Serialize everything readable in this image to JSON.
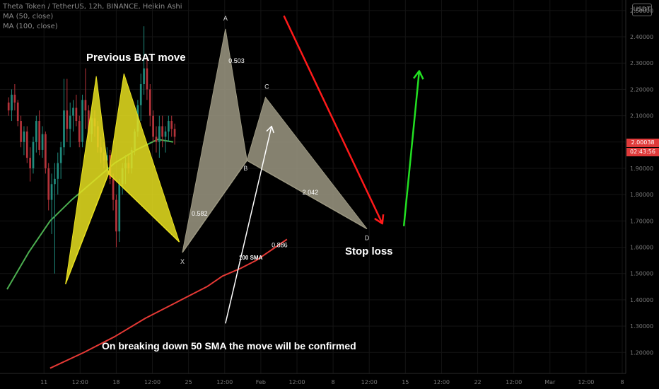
{
  "header": {
    "title": "Theta Token / TetherUS, 12h, BINANCE, Heikin Ashi",
    "indicator_1": "MA (50, close)",
    "indicator_2": "MA (100, close)"
  },
  "currency_badge": "USDT",
  "price_tag": {
    "price": "2.00038",
    "countdown": "02:43:56",
    "color": "#e03a3a"
  },
  "annotations": {
    "previous_bat": "Previous BAT move",
    "stop_loss": "Stop loss",
    "confirmation": "On breaking down 50 SMA the move will be confirmed",
    "sma_label": "100 SMA"
  },
  "chart_data": {
    "type": "candlestick",
    "y_axis": {
      "ticks": [
        "2.50000",
        "2.40000",
        "2.30000",
        "2.20000",
        "2.10000",
        "2.00000",
        "1.90000",
        "1.80000",
        "1.70000",
        "1.60000",
        "1.50000",
        "1.40000",
        "1.30000",
        "1.20000"
      ],
      "ylim": [
        1.12,
        2.54
      ]
    },
    "x_axis": {
      "labels": [
        "11",
        "12:00",
        "18",
        "12:00",
        "25",
        "12:00",
        "Feb",
        "12:00",
        "8",
        "12:00",
        "15",
        "12:00",
        "22",
        "12:00",
        "Mar",
        "12:00",
        "8"
      ],
      "xlim": [
        0,
        200
      ]
    },
    "candles": [
      [
        2.15,
        2.17,
        2.1,
        2.12
      ],
      [
        2.12,
        2.2,
        2.08,
        2.18
      ],
      [
        2.18,
        2.22,
        2.12,
        2.15
      ],
      [
        2.15,
        2.16,
        2.06,
        2.08
      ],
      [
        2.08,
        2.1,
        1.98,
        2.0
      ],
      [
        2.0,
        2.06,
        1.95,
        2.04
      ],
      [
        2.04,
        2.06,
        1.92,
        1.94
      ],
      [
        1.94,
        1.98,
        1.85,
        1.9
      ],
      [
        1.9,
        2.02,
        1.88,
        2.0
      ],
      [
        2.0,
        2.1,
        1.96,
        2.08
      ],
      [
        2.08,
        2.12,
        1.95,
        1.97
      ],
      [
        1.97,
        2.06,
        1.94,
        2.03
      ],
      [
        2.03,
        2.04,
        1.88,
        1.9
      ],
      [
        1.9,
        1.92,
        1.74,
        1.78
      ],
      [
        1.78,
        1.88,
        1.65,
        1.84
      ],
      [
        1.84,
        1.92,
        1.5,
        1.86
      ],
      [
        1.86,
        1.96,
        1.8,
        1.92
      ],
      [
        1.92,
        2.0,
        1.86,
        1.98
      ],
      [
        1.98,
        2.24,
        1.95,
        2.12
      ],
      [
        2.12,
        2.24,
        2.0,
        2.05
      ],
      [
        2.05,
        2.15,
        1.98,
        2.1
      ],
      [
        2.1,
        2.16,
        2.04,
        2.13
      ],
      [
        2.13,
        2.18,
        2.06,
        2.08
      ],
      [
        2.08,
        2.1,
        1.98,
        2.0
      ],
      [
        2.0,
        2.18,
        1.98,
        2.16
      ],
      [
        2.16,
        2.28,
        2.05,
        2.12
      ],
      [
        2.12,
        2.14,
        2.0,
        2.03
      ],
      [
        2.03,
        2.12,
        2.0,
        2.09
      ],
      [
        2.09,
        2.12,
        2.02,
        2.06
      ],
      [
        2.06,
        2.08,
        1.96,
        1.98
      ],
      [
        1.98,
        2.02,
        1.92,
        1.96
      ],
      [
        1.96,
        2.0,
        1.9,
        1.93
      ],
      [
        1.93,
        1.98,
        1.88,
        1.95
      ],
      [
        1.95,
        1.97,
        1.84,
        1.86
      ],
      [
        1.86,
        1.88,
        1.74,
        1.78
      ],
      [
        1.78,
        1.8,
        1.6,
        1.66
      ],
      [
        1.66,
        1.86,
        1.62,
        1.84
      ],
      [
        1.84,
        1.92,
        1.8,
        1.9
      ],
      [
        1.9,
        1.95,
        1.84,
        1.92
      ],
      [
        1.92,
        1.95,
        1.88,
        1.9
      ],
      [
        1.9,
        1.98,
        1.88,
        1.97
      ],
      [
        1.97,
        2.05,
        1.95,
        2.04
      ],
      [
        2.04,
        2.16,
        2.02,
        2.14
      ],
      [
        2.14,
        2.26,
        2.08,
        2.22
      ],
      [
        2.22,
        2.44,
        2.18,
        2.28
      ],
      [
        2.28,
        2.32,
        2.16,
        2.2
      ],
      [
        2.2,
        2.22,
        2.06,
        2.1
      ],
      [
        2.1,
        2.12,
        2.0,
        2.02
      ],
      [
        2.02,
        2.06,
        1.96,
        2.0
      ],
      [
        2.0,
        2.1,
        1.94,
        2.06
      ],
      [
        2.06,
        2.1,
        1.98,
        2.02
      ],
      [
        2.02,
        2.06,
        1.96,
        2.04
      ],
      [
        2.04,
        2.1,
        2.0,
        2.08
      ],
      [
        2.08,
        2.1,
        2.02,
        2.05
      ],
      [
        2.05,
        2.07,
        1.99,
        2.02
      ]
    ],
    "series": [
      {
        "name": "MA (50, close)",
        "color": "#4caf50",
        "x": [
          0,
          7,
          14,
          21,
          28,
          35,
          42,
          49,
          54
        ],
        "y": [
          1.44,
          1.58,
          1.7,
          1.78,
          1.85,
          1.92,
          1.97,
          2.01,
          2.0
        ]
      },
      {
        "name": "MA (100, close)",
        "color": "#e53935",
        "x": [
          14,
          25,
          35,
          45,
          55,
          65,
          70,
          76,
          81,
          86,
          91
        ],
        "y": [
          1.14,
          1.2,
          1.26,
          1.33,
          1.39,
          1.45,
          1.49,
          1.52,
          1.55,
          1.59,
          1.63
        ]
      }
    ],
    "patterns": [
      {
        "name": "previous-bat",
        "color": "#e8e020",
        "points": [
          [
            19,
            1.46
          ],
          [
            29,
            2.25
          ],
          [
            33,
            1.88
          ],
          [
            38,
            2.26
          ],
          [
            56,
            1.62
          ]
        ],
        "labels": []
      },
      {
        "name": "current-bat",
        "color": "#9c9882",
        "points": [
          [
            57,
            1.58
          ],
          [
            71,
            2.43
          ],
          [
            78,
            1.93
          ],
          [
            84,
            2.17
          ],
          [
            117,
            1.67
          ]
        ],
        "labels": [
          "X",
          "A",
          "B",
          "C",
          "D"
        ]
      }
    ],
    "ratios": [
      "0.503",
      "0.582",
      "2.042",
      "0.886"
    ],
    "arrows": [
      {
        "name": "bearish-arrow",
        "color": "#ff1a1a",
        "from": [
          90,
          2.48
        ],
        "to": [
          122,
          1.69
        ]
      },
      {
        "name": "bullish-arrow",
        "color": "#22e022",
        "from": [
          129,
          1.68
        ],
        "to": [
          134,
          2.27
        ]
      },
      {
        "name": "confirmation-arrow",
        "color": "#ffffff",
        "from": [
          71,
          1.31
        ],
        "to": [
          86,
          2.06
        ]
      }
    ]
  }
}
